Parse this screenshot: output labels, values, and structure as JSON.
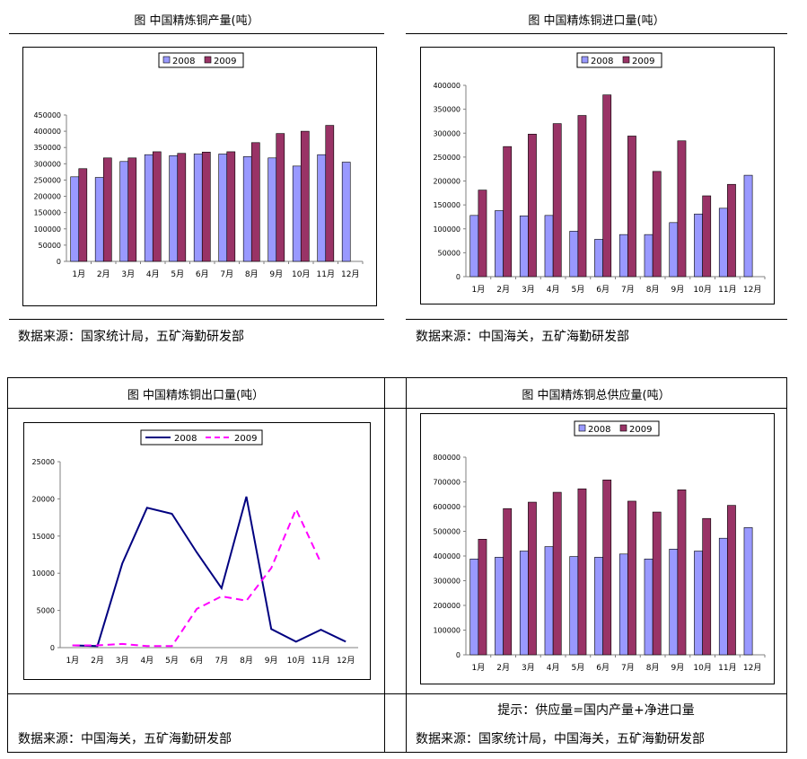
{
  "panels": [
    {
      "title": "图  中国精炼铜产量(吨）",
      "source": "数据来源：国家统计局，五矿海勤研发部"
    },
    {
      "title": "图  中国精炼铜进口量(吨）",
      "source": "数据来源：中国海关，五矿海勤研发部"
    },
    {
      "title": "图  中国精炼铜出口量(吨）",
      "source": "数据来源：中国海关，五矿海勤研发部"
    },
    {
      "title": "图  中国精炼铜总供应量(吨）",
      "source": "数据来源：国家统计局，中国海关，五矿海勤研发部",
      "note": "提示：供应量=国内产量+净进口量"
    }
  ],
  "colors": {
    "series2008": "#9999ff",
    "series2009": "#993366",
    "line2008": "#000080",
    "line2009": "#ff00ff"
  },
  "chart_data": [
    {
      "type": "bar",
      "categories": [
        "1月",
        "2月",
        "3月",
        "4月",
        "5月",
        "6月",
        "7月",
        "8月",
        "9月",
        "10月",
        "11月",
        "12月"
      ],
      "series": [
        {
          "name": "2008",
          "values": [
            260000,
            258000,
            307000,
            328000,
            325000,
            330000,
            330000,
            322000,
            318000,
            293000,
            328000,
            305000
          ]
        },
        {
          "name": "2009",
          "values": [
            285000,
            318000,
            318000,
            337000,
            332000,
            336000,
            337000,
            365000,
            393000,
            400000,
            418000,
            null
          ]
        }
      ],
      "ylim": [
        0,
        450000
      ],
      "yticks": [
        "450000",
        "400000",
        "350000",
        "300000",
        "250000",
        "200000",
        "150000",
        "100000",
        "50000",
        "0"
      ],
      "legend": "top-center"
    },
    {
      "type": "bar",
      "categories": [
        "1月",
        "2月",
        "3月",
        "4月",
        "5月",
        "6月",
        "7月",
        "8月",
        "9月",
        "10月",
        "11月",
        "12月"
      ],
      "series": [
        {
          "name": "2008",
          "values": [
            128000,
            138000,
            127000,
            128000,
            95000,
            78000,
            88000,
            88000,
            113000,
            131000,
            143000,
            212000
          ]
        },
        {
          "name": "2009",
          "values": [
            181000,
            272000,
            298000,
            320000,
            337000,
            380000,
            294000,
            220000,
            284000,
            169000,
            193000,
            null
          ]
        }
      ],
      "ylim": [
        0,
        400000
      ],
      "yticks": [
        "400000",
        "350000",
        "300000",
        "250000",
        "200000",
        "150000",
        "100000",
        "50000",
        "0"
      ],
      "legend": "top-center"
    },
    {
      "type": "line",
      "categories": [
        "1月",
        "2月",
        "3月",
        "4月",
        "5月",
        "6月",
        "7月",
        "8月",
        "9月",
        "10月",
        "11月",
        "12月"
      ],
      "series": [
        {
          "name": "2008",
          "values": [
            300,
            200,
            11300,
            18800,
            18000,
            12800,
            8000,
            20300,
            2500,
            800,
            2400,
            800
          ]
        },
        {
          "name": "2009",
          "values": [
            300,
            300,
            500,
            200,
            200,
            5200,
            6900,
            6300,
            10700,
            18600,
            11400,
            null
          ]
        }
      ],
      "ylim": [
        0,
        25000
      ],
      "yticks": [
        "25000",
        "20000",
        "15000",
        "10000",
        "5000",
        "0"
      ],
      "legend": "top-center"
    },
    {
      "type": "bar",
      "categories": [
        "1月",
        "2月",
        "3月",
        "4月",
        "5月",
        "6月",
        "7月",
        "8月",
        "9月",
        "10月",
        "11月",
        "12月"
      ],
      "series": [
        {
          "name": "2008",
          "values": [
            388000,
            395000,
            420000,
            438000,
            398000,
            395000,
            408000,
            388000,
            428000,
            420000,
            472000,
            515000
          ]
        },
        {
          "name": "2009",
          "values": [
            468000,
            592000,
            618000,
            658000,
            672000,
            708000,
            622000,
            578000,
            668000,
            552000,
            605000,
            null
          ]
        }
      ],
      "ylim": [
        0,
        800000
      ],
      "yticks": [
        "800000",
        "700000",
        "600000",
        "500000",
        "400000",
        "300000",
        "200000",
        "100000",
        "0"
      ],
      "legend": "top-center"
    }
  ]
}
